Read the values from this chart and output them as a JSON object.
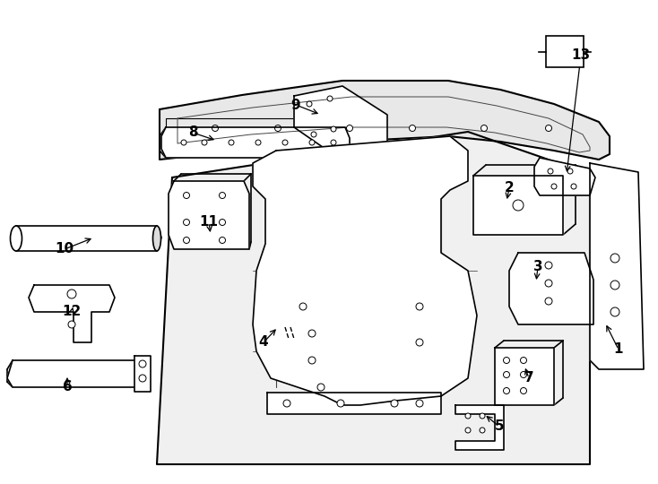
{
  "background_color": "#ffffff",
  "line_color": "#000000",
  "line_width": 1.2,
  "fig_width": 7.34,
  "fig_height": 5.4,
  "dpi": 100,
  "label_data": [
    [
      "1",
      690,
      390,
      675,
      360
    ],
    [
      "2",
      568,
      210,
      565,
      225
    ],
    [
      "3",
      600,
      298,
      598,
      315
    ],
    [
      "4",
      294,
      382,
      310,
      365
    ],
    [
      "5",
      557,
      476,
      540,
      462
    ],
    [
      "6",
      75,
      432,
      75,
      418
    ],
    [
      "7",
      590,
      422,
      585,
      408
    ],
    [
      "8",
      215,
      148,
      242,
      157
    ],
    [
      "9",
      330,
      117,
      358,
      128
    ],
    [
      "10",
      72,
      278,
      105,
      265
    ],
    [
      "11",
      233,
      248,
      235,
      262
    ],
    [
      "12",
      80,
      348,
      82,
      340
    ],
    [
      "13",
      648,
      62,
      632,
      195
    ]
  ]
}
